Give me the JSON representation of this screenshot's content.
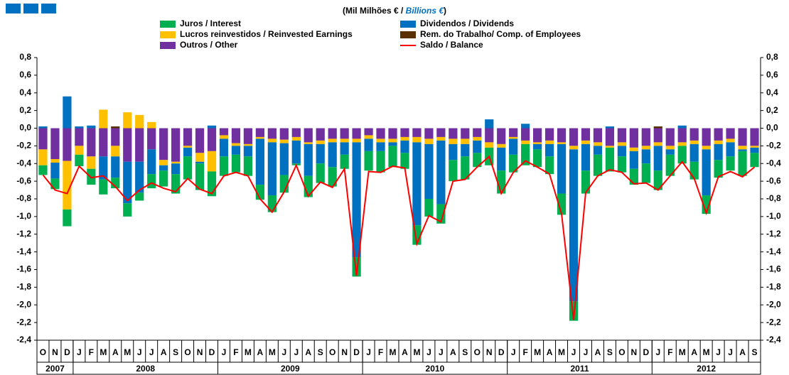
{
  "chart_data": {
    "type": "bar",
    "stacked": true,
    "title_parts": [
      "(Mil Milhões € / ",
      "Billions €",
      ")"
    ],
    "categories": [
      "O",
      "N",
      "D",
      "J",
      "F",
      "M",
      "A",
      "M",
      "J",
      "J",
      "A",
      "S",
      "O",
      "N",
      "D",
      "J",
      "F",
      "M",
      "A",
      "M",
      "J",
      "J",
      "A",
      "S",
      "O",
      "N",
      "D",
      "J",
      "F",
      "M",
      "A",
      "M",
      "J",
      "J",
      "A",
      "S",
      "O",
      "N",
      "D",
      "J",
      "F",
      "M",
      "A",
      "M",
      "J",
      "J",
      "A",
      "S",
      "O",
      "N",
      "D",
      "J",
      "F",
      "M",
      "A",
      "M",
      "J",
      "J",
      "A",
      "S"
    ],
    "year_labels": [
      "2007",
      "2008",
      "2009",
      "2010",
      "2011",
      "2012"
    ],
    "series": [
      {
        "name": "Juros / Interest",
        "color": "#00b050",
        "values": [
          -0.11,
          -0.12,
          -0.19,
          -0.13,
          -0.18,
          -0.17,
          -0.12,
          -0.15,
          -0.09,
          -0.16,
          -0.18,
          -0.22,
          -0.26,
          -0.3,
          -0.28,
          -0.22,
          -0.2,
          -0.22,
          -0.17,
          -0.19,
          -0.2,
          -0.02,
          -0.24,
          -0.22,
          -0.22,
          -0.16,
          -0.22,
          -0.22,
          -0.24,
          -0.24,
          -0.18,
          -0.22,
          -0.2,
          -0.22,
          -0.24,
          -0.26,
          -0.16,
          -0.2,
          -0.26,
          -0.2,
          -0.24,
          -0.2,
          -0.2,
          -0.24,
          -0.22,
          -0.26,
          -0.24,
          -0.27,
          -0.18,
          -0.18,
          -0.22,
          -0.22,
          -0.24,
          -0.2,
          -0.2,
          -0.21,
          -0.2,
          -0.16,
          -0.28,
          -0.16
        ]
      },
      {
        "name": "Dividendos / Dividends",
        "color": "#0070c0",
        "values": [
          0.02,
          -0.18,
          0.36,
          0.02,
          0.03,
          -0.26,
          -0.24,
          -0.47,
          -0.35,
          -0.28,
          -0.06,
          -0.12,
          -0.1,
          -0.02,
          0.03,
          -0.2,
          -0.1,
          -0.12,
          -0.52,
          -0.6,
          -0.36,
          -0.26,
          -0.36,
          -0.22,
          -0.28,
          -0.14,
          -1.3,
          -0.14,
          -0.1,
          -0.04,
          -0.14,
          -0.94,
          -0.62,
          -0.72,
          -0.18,
          -0.14,
          -0.14,
          0.1,
          -0.26,
          -0.18,
          0.05,
          -0.06,
          -0.14,
          -0.56,
          -1.72,
          -0.3,
          -0.1,
          0.02,
          -0.12,
          -0.2,
          -0.16,
          -0.28,
          -0.06,
          0.03,
          -0.2,
          -0.52,
          -0.18,
          -0.16,
          -0.02,
          -0.06
        ]
      },
      {
        "name": "Lucros reinvestidos / Reinvested Earnings",
        "color": "#ffc000",
        "values": [
          -0.18,
          -0.04,
          -0.55,
          -0.1,
          -0.14,
          0.21,
          -0.12,
          0.18,
          0.15,
          0.07,
          -0.06,
          -0.02,
          -0.02,
          -0.1,
          -0.23,
          -0.04,
          -0.03,
          -0.02,
          -0.02,
          -0.04,
          -0.04,
          -0.04,
          -0.02,
          -0.04,
          -0.04,
          -0.04,
          -0.04,
          -0.04,
          -0.04,
          -0.04,
          -0.04,
          -0.06,
          -0.06,
          -0.04,
          -0.06,
          -0.06,
          -0.04,
          -0.06,
          -0.04,
          -0.02,
          -0.04,
          -0.02,
          -0.04,
          -0.02,
          -0.04,
          -0.04,
          -0.04,
          -0.02,
          -0.04,
          -0.04,
          -0.04,
          -0.04,
          -0.04,
          -0.04,
          -0.04,
          -0.04,
          -0.04,
          -0.04,
          -0.04,
          -0.02
        ]
      },
      {
        "name": "Rem. do Trabalho/ Comp. of Employees",
        "color": "#5a3000",
        "values": [
          0,
          0,
          0,
          0,
          0,
          0,
          0.02,
          0,
          0,
          0,
          0,
          0,
          0,
          0,
          0,
          0,
          0,
          0,
          0,
          0,
          0,
          0,
          0,
          0,
          0,
          0,
          0,
          0,
          0,
          0,
          0,
          0,
          0,
          0,
          0,
          0,
          0,
          0,
          0,
          0,
          0,
          0,
          0,
          0,
          0,
          0,
          0,
          0,
          0,
          0,
          0,
          0.02,
          0,
          0,
          0,
          0,
          0,
          0,
          0,
          0
        ]
      },
      {
        "name": "Outros / Other",
        "color": "#7030a0",
        "values": [
          -0.24,
          -0.35,
          -0.37,
          -0.2,
          -0.32,
          -0.32,
          -0.2,
          -0.38,
          -0.38,
          -0.24,
          -0.36,
          -0.38,
          -0.2,
          -0.28,
          -0.26,
          -0.08,
          -0.17,
          -0.18,
          -0.1,
          -0.12,
          -0.13,
          -0.1,
          -0.16,
          -0.14,
          -0.12,
          -0.12,
          -0.12,
          -0.08,
          -0.12,
          -0.12,
          -0.1,
          -0.1,
          -0.12,
          -0.1,
          -0.12,
          -0.12,
          -0.1,
          -0.16,
          -0.18,
          -0.1,
          -0.14,
          -0.16,
          -0.14,
          -0.16,
          -0.2,
          -0.14,
          -0.16,
          -0.2,
          -0.16,
          -0.22,
          -0.2,
          -0.16,
          -0.2,
          -0.16,
          -0.14,
          -0.2,
          -0.14,
          -0.12,
          -0.2,
          -0.2
        ]
      },
      {
        "name": "Saldo / Balance",
        "color": "#ff0000",
        "type": "line",
        "values": [
          -0.53,
          -0.7,
          -0.74,
          -0.43,
          -0.56,
          -0.54,
          -0.66,
          -0.82,
          -0.7,
          -0.62,
          -0.68,
          -0.72,
          -0.57,
          -0.69,
          -0.74,
          -0.54,
          -0.5,
          -0.54,
          -0.8,
          -0.95,
          -0.72,
          -0.42,
          -0.77,
          -0.61,
          -0.67,
          -0.46,
          -1.67,
          -0.49,
          -0.5,
          -0.43,
          -0.45,
          -1.31,
          -0.99,
          -1.06,
          -0.6,
          -0.58,
          -0.44,
          -0.32,
          -0.74,
          -0.5,
          -0.37,
          -0.44,
          -0.52,
          -0.97,
          -2.17,
          -0.73,
          -0.54,
          -0.47,
          -0.5,
          -0.63,
          -0.62,
          -0.7,
          -0.54,
          -0.38,
          -0.57,
          -0.96,
          -0.55,
          -0.49,
          -0.55,
          -0.44
        ]
      }
    ],
    "ylim": [
      -2.4,
      0.8
    ],
    "yticks": [
      {
        "value": 0.8,
        "label": "0,8"
      },
      {
        "value": 0.6,
        "label": "0,6"
      },
      {
        "value": 0.4,
        "label": "0,4"
      },
      {
        "value": 0.2,
        "label": "0,2"
      },
      {
        "value": 0,
        "label": "0,0"
      },
      {
        "value": -0.2,
        "label": "-0,2"
      },
      {
        "value": -0.4,
        "label": "-0,4"
      },
      {
        "value": -0.6,
        "label": "-0,6"
      },
      {
        "value": -0.8,
        "label": "-0,8"
      },
      {
        "value": -1.0,
        "label": "-1,0"
      },
      {
        "value": -1.2,
        "label": "-1,2"
      },
      {
        "value": -1.4,
        "label": "-1,4"
      },
      {
        "value": -1.6,
        "label": "-1,6"
      },
      {
        "value": -1.8,
        "label": "-1,8"
      },
      {
        "value": -2.0,
        "label": "-2,0"
      },
      {
        "value": -2.2,
        "label": "-2,2"
      },
      {
        "value": -2.4,
        "label": "-2,4"
      }
    ],
    "grid": false
  }
}
